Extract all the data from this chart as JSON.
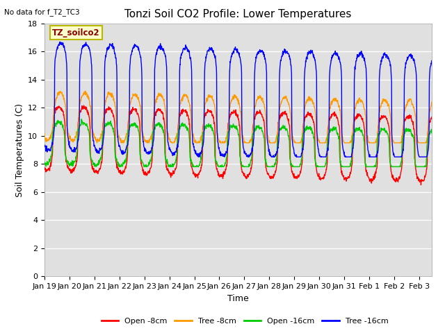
{
  "title": "Tonzi Soil CO2 Profile: Lower Temperatures",
  "no_data_text": "No data for f_T2_TC3",
  "legend_box_text": "TZ_soilco2",
  "xlabel": "Time",
  "ylabel": "Soil Temperatures (C)",
  "ylim": [
    0,
    18
  ],
  "yticks": [
    0,
    2,
    4,
    6,
    8,
    10,
    12,
    14,
    16,
    18
  ],
  "xtick_labels": [
    "Jan 19",
    "Jan 20",
    "Jan 21",
    "Jan 22",
    "Jan 23",
    "Jan 24",
    "Jan 25",
    "Jan 26",
    "Jan 27",
    "Jan 28",
    "Jan 29",
    "Jan 30",
    "Jan 31",
    "Feb 1",
    "Feb 2",
    "Feb 3"
  ],
  "colors": {
    "open_8cm": "#ff0000",
    "tree_8cm": "#ff9900",
    "open_16cm": "#00cc00",
    "tree_16cm": "#0000ff"
  },
  "legend_entries": [
    {
      "label": "Open -8cm",
      "color": "#ff0000"
    },
    {
      "label": "Tree -8cm",
      "color": "#ff9900"
    },
    {
      "label": "Open -16cm",
      "color": "#00cc00"
    },
    {
      "label": "Tree -16cm",
      "color": "#0000ff"
    }
  ],
  "background_color": "#ffffff",
  "plot_bg_color": "#e0e0e0",
  "grid_color": "#ffffff",
  "title_fontsize": 11,
  "axis_label_fontsize": 9,
  "tick_fontsize": 8,
  "n_days": 15.5,
  "ppd": 96,
  "open_8_params": {
    "base": 9.8,
    "amp": 2.3,
    "phase": 0.58,
    "sharpness": 3.5,
    "trend": -0.05
  },
  "tree_8_params": {
    "base": 11.4,
    "amp": 1.7,
    "phase": 0.62,
    "sharpness": 2.0,
    "trend": -0.04
  },
  "open_16_params": {
    "base": 9.5,
    "amp": 1.5,
    "phase": 0.56,
    "sharpness": 3.0,
    "trend": -0.04
  },
  "tree_16_params": {
    "base": 12.8,
    "amp": 3.8,
    "phase": 0.65,
    "sharpness": 5.0,
    "trend": -0.06
  }
}
